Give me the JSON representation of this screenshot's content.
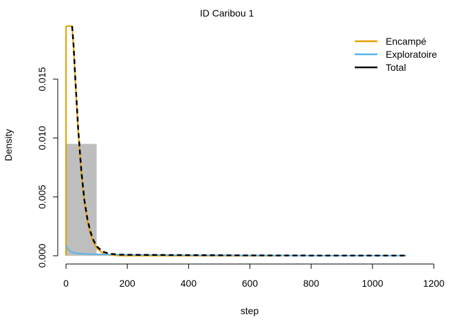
{
  "chart_data": {
    "type": "histogram",
    "title": "ID Caribou 1",
    "xlabel": "step",
    "ylabel": "Density",
    "xlim": [
      0,
      1200
    ],
    "ylim": [
      0,
      0.0195
    ],
    "x_ticks": [
      "0",
      "200",
      "400",
      "600",
      "800",
      "1000",
      "1200"
    ],
    "y_ticks": [
      "0.000",
      "0.005",
      "0.010",
      "0.015"
    ],
    "legend_position": "top-right",
    "histogram": {
      "color": "#bebebe",
      "bins": [
        {
          "x0": 0,
          "x1": 100,
          "density": 0.0095
        },
        {
          "x0": 100,
          "x1": 200,
          "density": 0.0001
        },
        {
          "x0": 200,
          "x1": 300,
          "density": 3e-05
        },
        {
          "x0": 300,
          "x1": 400,
          "density": 2e-05
        },
        {
          "x0": 400,
          "x1": 500,
          "density": 1e-05
        },
        {
          "x0": 500,
          "x1": 600,
          "density": 1e-05
        },
        {
          "x0": 600,
          "x1": 700,
          "density": 1e-05
        },
        {
          "x0": 700,
          "x1": 800,
          "density": 0.0
        },
        {
          "x0": 800,
          "x1": 900,
          "density": 0.0
        },
        {
          "x0": 900,
          "x1": 1000,
          "density": 0.0
        },
        {
          "x0": 1000,
          "x1": 1100,
          "density": 0.0
        }
      ]
    },
    "series": [
      {
        "name": "Encampé",
        "color": "#E69F00",
        "dash": "solid",
        "points": [
          [
            0,
            0.0195
          ],
          [
            10,
            0.0195
          ],
          [
            20,
            0.0195
          ],
          [
            25,
            0.0176
          ],
          [
            30,
            0.015
          ],
          [
            40,
            0.0105
          ],
          [
            50,
            0.007
          ],
          [
            60,
            0.0045
          ],
          [
            70,
            0.0029
          ],
          [
            80,
            0.0018
          ],
          [
            90,
            0.0011
          ],
          [
            100,
            0.00065
          ],
          [
            120,
            0.00022
          ],
          [
            140,
            8e-05
          ],
          [
            170,
            2e-05
          ],
          [
            200,
            0.0
          ],
          [
            400,
            0.0
          ],
          [
            700,
            0.0
          ]
        ]
      },
      {
        "name": "Exploratoire",
        "color": "#56B4E9",
        "dash": "solid",
        "points": [
          [
            0,
            0.0009
          ],
          [
            5,
            0.0006
          ],
          [
            15,
            0.00035
          ],
          [
            30,
            0.00022
          ],
          [
            60,
            0.00016
          ],
          [
            100,
            0.00012
          ],
          [
            200,
            8e-05
          ],
          [
            400,
            5e-05
          ],
          [
            600,
            3e-05
          ],
          [
            800,
            2e-05
          ],
          [
            1000,
            1e-05
          ],
          [
            1110,
            1e-05
          ]
        ]
      },
      {
        "name": "Total",
        "color": "#000000",
        "dash": "dashed",
        "points": [
          [
            20,
            0.0195
          ],
          [
            25,
            0.0178
          ],
          [
            30,
            0.0152
          ],
          [
            40,
            0.0107
          ],
          [
            50,
            0.0072
          ],
          [
            60,
            0.0047
          ],
          [
            70,
            0.0031
          ],
          [
            80,
            0.002
          ],
          [
            90,
            0.0013
          ],
          [
            100,
            0.0008
          ],
          [
            120,
            0.00035
          ],
          [
            140,
            0.00018
          ],
          [
            170,
            0.0001
          ],
          [
            200,
            8e-05
          ],
          [
            400,
            5e-05
          ],
          [
            600,
            3e-05
          ],
          [
            800,
            2e-05
          ],
          [
            1000,
            1e-05
          ],
          [
            1110,
            1e-05
          ]
        ]
      }
    ],
    "vertical_spike": {
      "series": "Encampé",
      "x": 0
    }
  }
}
